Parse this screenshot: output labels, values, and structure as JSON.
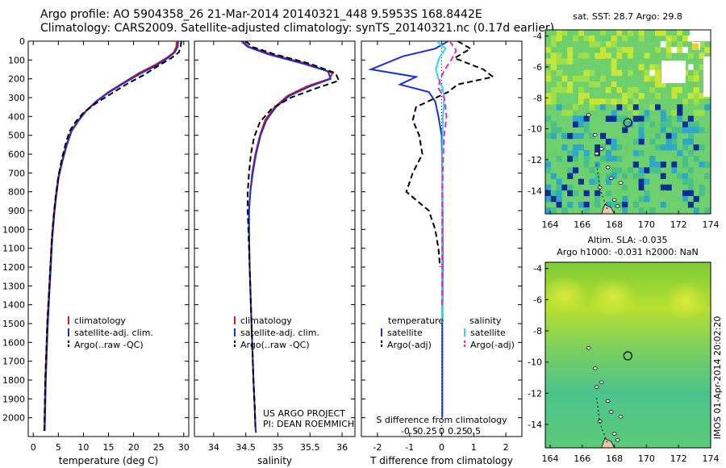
{
  "header": {
    "line1": "Argo profile: AO 5904358_26 21-Mar-2014 20140321_448 9.5953S 168.8442E",
    "line2": "Climatology: CARS2009. Satellite-adjusted climatology: synTS_20140321.nc (0.17d earlier)"
  },
  "colors": {
    "climatology": "#e8141a",
    "satellite": "#1a2ee0",
    "argo": "#000000",
    "satellite_salinity": "#22ddee",
    "argo_salinity_adj": "#ee22cc"
  },
  "chart_data": [
    {
      "type": "line",
      "name": "temperature-profile",
      "xlabel": "temperature (deg C)",
      "ylabel": "",
      "xlim": [
        -1,
        31
      ],
      "ylim": [
        2100,
        0
      ],
      "xticks": [
        0,
        5,
        10,
        15,
        20,
        25,
        30
      ],
      "yticks": [
        0,
        100,
        200,
        300,
        400,
        500,
        600,
        700,
        800,
        900,
        1000,
        1100,
        1200,
        1300,
        1400,
        1500,
        1600,
        1700,
        1800,
        1900,
        2000
      ],
      "legend": {
        "position": "lower-middle",
        "entries": [
          "climatology",
          "satellite-adj. clim.",
          "Argo(..raw -QC)"
        ]
      },
      "series": [
        {
          "name": "climatology",
          "style": "solid",
          "color": "#e8141a",
          "x": [
            28.6,
            28.5,
            28,
            26.5,
            24,
            21,
            18,
            15,
            12.5,
            10.5,
            9,
            7.5,
            6.5,
            5.7,
            5,
            4.5,
            4.1,
            3.7,
            3.4,
            3.1,
            2.8,
            2.6,
            2.4,
            2.3,
            2.2
          ],
          "y": [
            0,
            30,
            60,
            90,
            130,
            170,
            220,
            270,
            320,
            370,
            420,
            480,
            560,
            640,
            720,
            820,
            920,
            1050,
            1200,
            1350,
            1500,
            1650,
            1800,
            1950,
            2070
          ]
        },
        {
          "name": "satellite-adj. clim.",
          "style": "solid",
          "color": "#1a2ee0",
          "x": [
            28.9,
            28.8,
            28.2,
            26.8,
            24.5,
            21.5,
            18.3,
            15.2,
            12.6,
            10.6,
            9.1,
            7.6,
            6.6,
            5.8,
            5.1,
            4.6,
            4.2,
            3.8,
            3.5,
            3.2,
            2.9,
            2.7,
            2.5,
            2.4,
            2.3
          ],
          "y": [
            0,
            30,
            60,
            90,
            130,
            170,
            220,
            270,
            320,
            370,
            420,
            480,
            560,
            640,
            720,
            820,
            920,
            1050,
            1200,
            1350,
            1500,
            1650,
            1800,
            1950,
            2070
          ]
        },
        {
          "name": "Argo(..raw -QC)",
          "style": "dashed",
          "color": "#000000",
          "x": [
            29.5,
            29.4,
            29,
            27.5,
            25,
            22,
            18.5,
            15.5,
            12.5,
            10,
            8.4,
            7.2,
            6.3,
            5.6,
            5,
            4.5,
            4.1,
            3.7,
            3.4,
            3.1,
            2.8,
            2.6,
            2.4,
            2.3,
            2.2
          ],
          "y": [
            0,
            30,
            60,
            90,
            130,
            180,
            230,
            280,
            330,
            380,
            430,
            480,
            560,
            640,
            720,
            820,
            920,
            1050,
            1200,
            1350,
            1500,
            1650,
            1800,
            1950,
            2070
          ]
        }
      ]
    },
    {
      "type": "line",
      "name": "salinity-profile",
      "xlabel": "salinity",
      "xlim": [
        33.7,
        36.2
      ],
      "ylim": [
        2100,
        0
      ],
      "xticks": [
        34,
        34.5,
        35,
        35.5,
        36
      ],
      "legend": {
        "position": "lower-middle",
        "entries": [
          "climatology",
          "satellite-adj. clim.",
          "Argo(..raw -QC)"
        ]
      },
      "annotation": [
        "US ARGO PROJECT",
        "PI: DEAN ROEMMICH"
      ],
      "series": [
        {
          "name": "climatology",
          "style": "solid",
          "color": "#e8141a",
          "x": [
            34.45,
            34.55,
            34.9,
            35.45,
            35.85,
            35.8,
            35.45,
            35.15,
            34.95,
            34.8,
            34.72,
            34.65,
            34.6,
            34.57,
            34.55,
            34.55,
            34.56,
            34.58,
            34.6,
            34.62,
            34.64,
            34.65,
            34.66
          ],
          "y": [
            0,
            30,
            70,
            120,
            170,
            200,
            240,
            290,
            350,
            420,
            500,
            600,
            700,
            800,
            900,
            1000,
            1200,
            1400,
            1600,
            1800,
            1950,
            2050,
            2080
          ]
        },
        {
          "name": "satellite-adj. clim.",
          "style": "solid",
          "color": "#1a2ee0",
          "x": [
            34.43,
            34.53,
            34.85,
            35.4,
            35.78,
            35.82,
            35.5,
            35.18,
            34.97,
            34.82,
            34.73,
            34.66,
            34.61,
            34.57,
            34.55,
            34.55,
            34.56,
            34.58,
            34.6,
            34.62,
            34.64,
            34.65,
            34.66
          ],
          "y": [
            0,
            30,
            70,
            120,
            160,
            200,
            240,
            290,
            350,
            420,
            500,
            600,
            700,
            800,
            900,
            1000,
            1200,
            1400,
            1600,
            1800,
            1950,
            2050,
            2080
          ]
        },
        {
          "name": "Argo(..raw -QC)",
          "style": "dashed",
          "color": "#000000",
          "x": [
            34.5,
            34.6,
            34.95,
            35.5,
            35.9,
            35.95,
            35.6,
            35.2,
            34.9,
            34.72,
            34.63,
            34.58,
            34.55,
            34.53,
            34.53,
            34.54,
            34.56,
            34.58,
            34.6,
            34.62,
            34.64,
            34.65
          ],
          "y": [
            0,
            30,
            70,
            120,
            170,
            210,
            250,
            300,
            360,
            430,
            510,
            600,
            700,
            800,
            900,
            1000,
            1200,
            1400,
            1600,
            1800,
            1950,
            2050
          ]
        }
      ]
    },
    {
      "type": "line",
      "name": "difference-profile",
      "xlabel": "T difference from climatology",
      "xlabel_top": "S difference from climatology",
      "xlim": [
        -2.5,
        2.5
      ],
      "ylim": [
        2100,
        0
      ],
      "xticks_bottom": [
        -2,
        -1,
        0,
        1,
        2
      ],
      "xticks_top": [
        "-0.5",
        "-0.25",
        "0",
        "0.25",
        "0.5"
      ],
      "legend": {
        "position": "lower-middle",
        "groups": [
          [
            "temperature",
            "satellite",
            "Argo(-adj)"
          ],
          [
            "salinity",
            "satellite",
            "Argo(-adj)"
          ]
        ]
      },
      "series": [
        {
          "name": "temperature satellite",
          "style": "solid",
          "color": "#1a2ee0",
          "x": [
            0.2,
            -0.2,
            -1.2,
            -2.2,
            -0.8,
            -1.3,
            -0.4,
            -0.2,
            -0.1,
            0,
            0.02,
            0.03,
            0.03,
            0.02,
            0.02,
            0.02
          ],
          "y": [
            0,
            40,
            80,
            150,
            190,
            230,
            270,
            320,
            400,
            500,
            700,
            900,
            1200,
            1500,
            1800,
            2000
          ]
        },
        {
          "name": "temperature Argo(-adj)",
          "style": "dashed",
          "color": "#000000",
          "x": [
            0.5,
            0.9,
            0.4,
            1.3,
            1.6,
            0.5,
            0.2,
            -0.8,
            -0.9,
            -0.7,
            -0.6,
            -0.9,
            -1.1,
            -0.4,
            -0.2,
            -0.1,
            -0.05
          ],
          "y": [
            0,
            40,
            90,
            150,
            190,
            230,
            270,
            350,
            420,
            500,
            600,
            700,
            800,
            900,
            1000,
            1100,
            1200
          ]
        },
        {
          "name": "salinity satellite",
          "style": "solid",
          "color": "#22ddee",
          "x": [
            -0.15,
            0.12,
            -0.08,
            -0.18,
            -0.1,
            0.03,
            0.08,
            0.04,
            0.02,
            0.02,
            0.01,
            0.01
          ],
          "y": [
            0,
            40,
            90,
            150,
            200,
            250,
            300,
            400,
            600,
            900,
            1200,
            1500
          ]
        },
        {
          "name": "salinity Argo(-adj)",
          "style": "dashed",
          "color": "#ee22cc",
          "x": [
            0.25,
            0.45,
            0.3,
            0.1,
            -0.05,
            -0.1,
            0.08,
            0.15,
            0.08,
            0.05,
            0.02,
            0.02,
            0.01
          ],
          "y": [
            0,
            50,
            100,
            150,
            200,
            250,
            300,
            400,
            500,
            600,
            800,
            1100,
            1400
          ]
        }
      ]
    },
    {
      "type": "heatmap",
      "name": "sst-map",
      "title": "sat. SST: 28.7 Argo: 29.8",
      "xlim": [
        163.7,
        174
      ],
      "ylim": [
        -15.5,
        -3.6
      ],
      "xticks": [
        164,
        166,
        168,
        170,
        172,
        174
      ],
      "yticks": [
        -4,
        -6,
        -8,
        -10,
        -12,
        -14
      ],
      "argo_position": {
        "lon": 168.84,
        "lat": -9.6
      }
    },
    {
      "type": "heatmap",
      "name": "sla-map",
      "title": [
        "Altim. SLA: -0.035",
        "Argo h1000: -0.031 h2000: NaN"
      ],
      "xlim": [
        163.7,
        174
      ],
      "ylim": [
        -15.5,
        -3.6
      ],
      "xticks": [
        164,
        166,
        168,
        170,
        172,
        174
      ],
      "yticks": [
        -4,
        -6,
        -8,
        -10,
        -12,
        -14
      ],
      "argo_position": {
        "lon": 168.84,
        "lat": -9.6
      }
    }
  ],
  "watermark": "IMOS 01-Apr-2014 20:02:20"
}
